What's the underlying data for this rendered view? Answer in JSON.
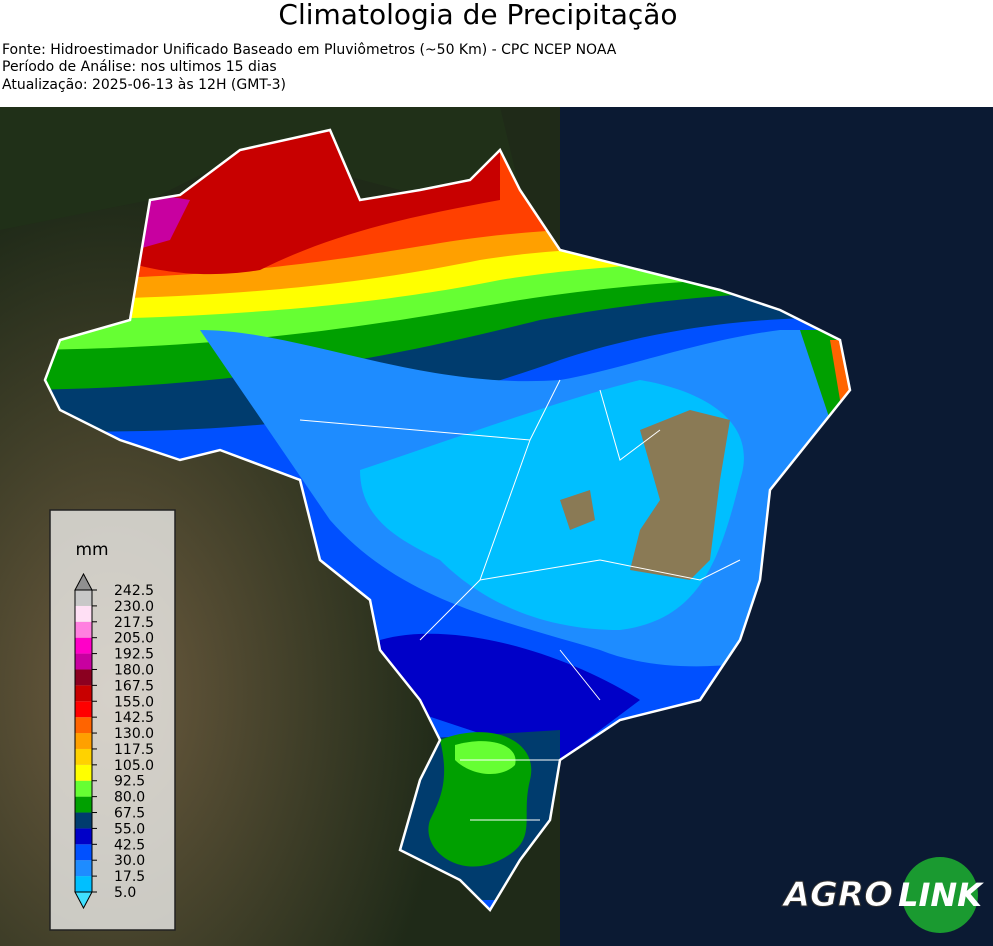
{
  "header": {
    "title": "Climatologia de Precipitação",
    "lines": [
      "Fonte: Hidroestimador Unificado Baseado em Pluviômetros (~50 Km) - CPC NCEP NOAA",
      "Período de Análise: nos ultimos 15 dias",
      "Atualização: 2025-06-13 às 12H (GMT-3)"
    ]
  },
  "legend": {
    "unit": "mm",
    "ticks": [
      {
        "value": 5,
        "label": "5.0"
      },
      17.5,
      {
        "value": 30,
        "label": "30.0"
      },
      42.5,
      {
        "value": 55,
        "label": "55.0"
      },
      67.5,
      {
        "value": 80,
        "label": "80.0"
      },
      92.5,
      {
        "value": 105,
        "label": "105.0"
      },
      117.5,
      {
        "value": 130,
        "label": "130.0"
      },
      142.5,
      {
        "value": 155,
        "label": "155.0"
      },
      167.5,
      {
        "value": 180,
        "label": "180.0"
      },
      192.5,
      {
        "value": 205,
        "label": "205.0"
      },
      217.5,
      {
        "value": 230,
        "label": "230.0"
      },
      242.5
    ],
    "colors": [
      "#00bfff",
      "#1e8cff",
      "#0050ff",
      "#0000c8",
      "#003c6e",
      "#00a000",
      "#66ff33",
      "#ffff00",
      "#ffd200",
      "#ffa000",
      "#ff6400",
      "#ff0000",
      "#c80000",
      "#8b0020",
      "#c800a0",
      "#ff00c8",
      "#ff80e0",
      "#ffe0f5",
      "#c8c8c8"
    ],
    "under_color": "#40e0ff",
    "over_color": "#909090"
  },
  "logo": [
    "AGRO",
    "LINK"
  ]
}
